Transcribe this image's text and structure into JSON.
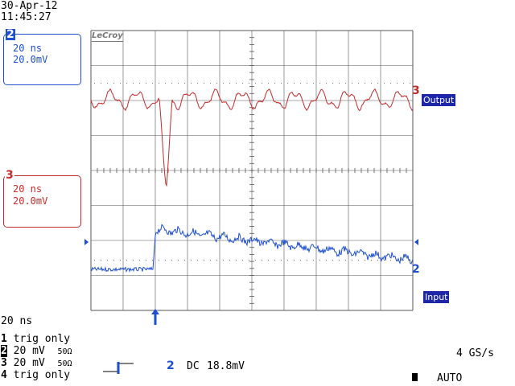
{
  "header": {
    "date": "30-Apr-12",
    "time": "11:45:27"
  },
  "brand": "LeCroy",
  "channel2_box": {
    "number": "2",
    "timebase": "20 ns",
    "volts": "20.0mV"
  },
  "channel3_box": {
    "number": "3",
    "timebase": "20 ns",
    "volts": "20.0mV"
  },
  "traces": {
    "output": {
      "marker": "3",
      "label": "Output",
      "color": "#c42b2b"
    },
    "input": {
      "marker": "2",
      "label": "Input",
      "color": "#1e4fd0"
    }
  },
  "timebase_readout": "20 ns",
  "channels": [
    {
      "num": "1",
      "text": "trig only",
      "ohm": ""
    },
    {
      "num": "2",
      "text": "20 mV",
      "ohm": "50Ω"
    },
    {
      "num": "3",
      "text": "20 mV",
      "ohm": "50Ω"
    },
    {
      "num": "4",
      "text": "trig only",
      "ohm": ""
    }
  ],
  "trigger": {
    "source": "2",
    "coupling": "DC",
    "level": "18.8mV"
  },
  "sample_rate": "4 GS/s",
  "mode": "AUTO"
}
